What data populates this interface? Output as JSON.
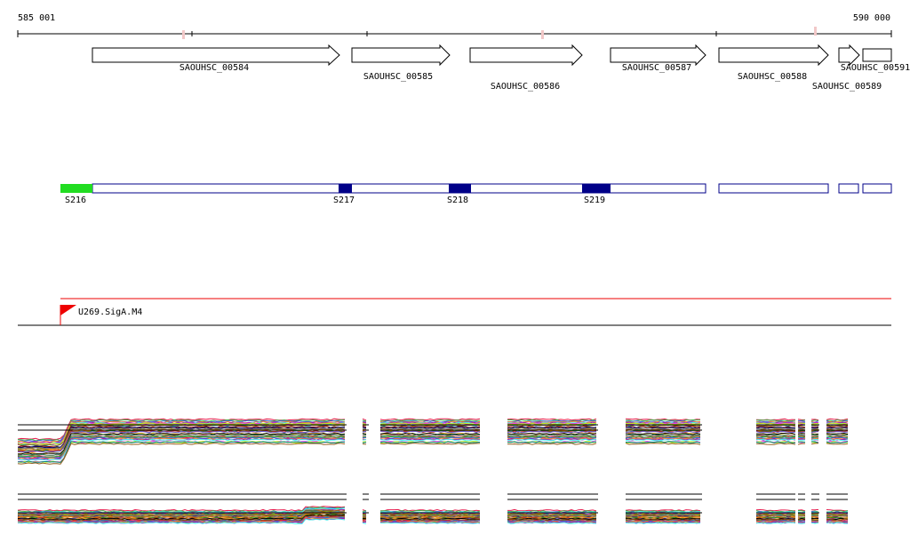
{
  "axis": {
    "start_label": "585 001",
    "end_label": "590 000"
  },
  "genes": [
    {
      "label": "SAOUHSC_00584"
    },
    {
      "label": "SAOUHSC_00585"
    },
    {
      "label": "SAOUHSC_00586"
    },
    {
      "label": "SAOUHSC_00587"
    },
    {
      "label": "SAOUHSC_00588"
    },
    {
      "label": "SAOUHSC_00589"
    },
    {
      "label": "SAOUHSC_00591"
    }
  ],
  "segments": [
    {
      "label": "S216",
      "color": "#22dd22"
    },
    {
      "label": "S217",
      "color": "#000088"
    },
    {
      "label": "S218",
      "color": "#000088"
    },
    {
      "label": "S219",
      "color": "#000088"
    }
  ],
  "promoter": {
    "label": "U269.SigA.M4",
    "color": "#ee0000"
  },
  "colors": {
    "outline": "#000088",
    "track_line": "#ee0000",
    "axis": "#000000"
  }
}
